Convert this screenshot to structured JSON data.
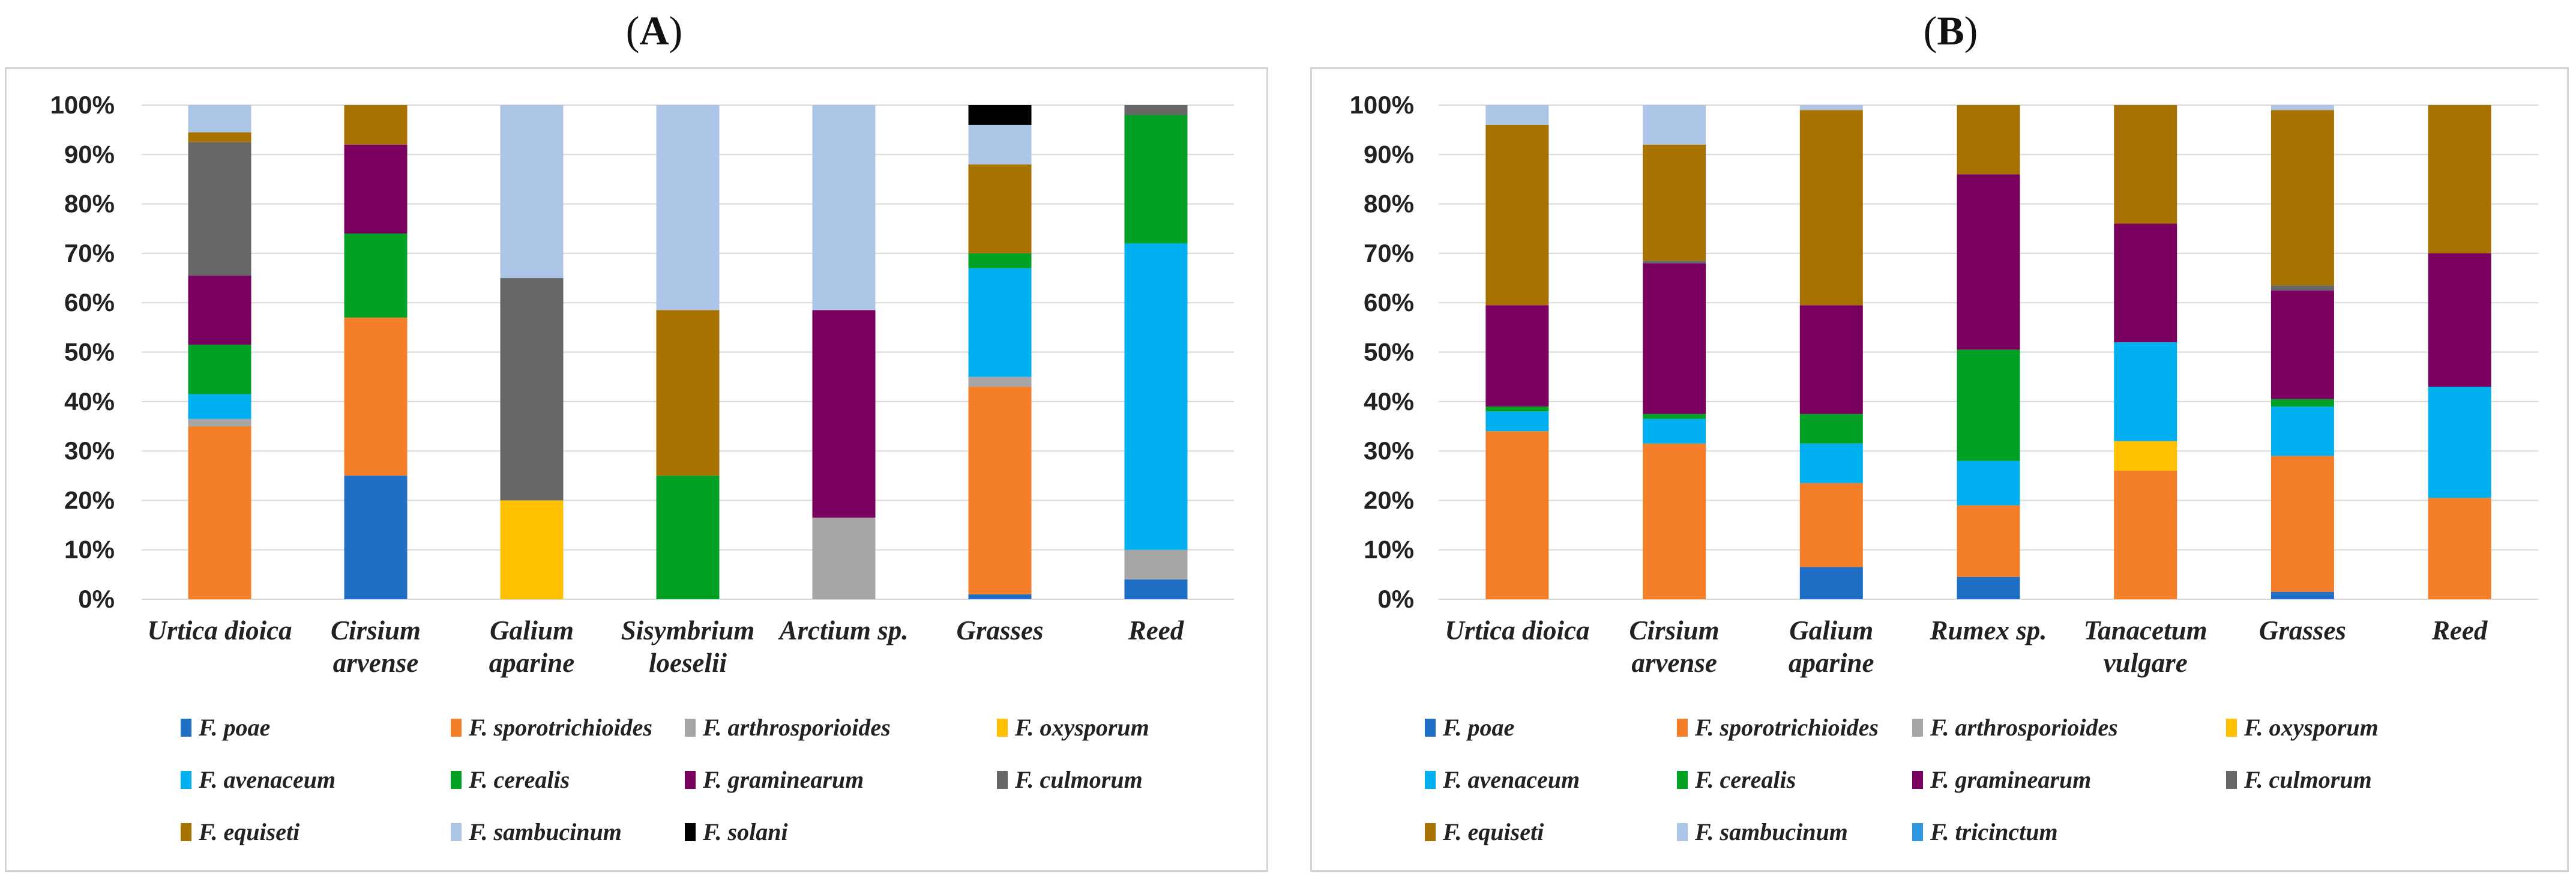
{
  "chart_data": [
    {
      "type": "bar",
      "stacked": true,
      "panel_label": "A",
      "title": "",
      "xlabel": "",
      "ylabel": "",
      "ylim": [
        0,
        100
      ],
      "yticks": [
        "0%",
        "10%",
        "20%",
        "30%",
        "40%",
        "50%",
        "60%",
        "70%",
        "80%",
        "90%",
        "100%"
      ],
      "grid": true,
      "legend_position": "bottom",
      "categories": [
        [
          "Urtica dioica"
        ],
        [
          "Cirsium",
          "arvense"
        ],
        [
          "Galium",
          "aparine"
        ],
        [
          "Sisymbrium",
          "loeselii"
        ],
        [
          "Arctium sp."
        ],
        [
          "Grasses"
        ],
        [
          "Reed"
        ]
      ],
      "series": [
        {
          "name": "F. poae",
          "color": "#1f6fc6",
          "values": [
            0,
            25,
            0,
            0,
            0,
            1,
            4
          ]
        },
        {
          "name": "F. sporotrichioides",
          "color": "#f57e28",
          "values": [
            35,
            32,
            0,
            0,
            0,
            42,
            0
          ]
        },
        {
          "name": "F. arthrosporioides",
          "color": "#a6a6a6",
          "values": [
            1.5,
            0,
            0,
            0,
            16.5,
            2,
            6
          ]
        },
        {
          "name": "F. oxysporum",
          "color": "#ffc000",
          "values": [
            0,
            0,
            20,
            0,
            0,
            0,
            0
          ]
        },
        {
          "name": "F. avenaceum",
          "color": "#00b0f0",
          "values": [
            5,
            0,
            0,
            0,
            0,
            22,
            62
          ]
        },
        {
          "name": "F. cerealis",
          "color": "#00a125",
          "values": [
            10,
            17,
            0,
            25,
            0,
            3,
            26
          ]
        },
        {
          "name": "F. graminearum",
          "color": "#7a0060",
          "values": [
            14,
            18,
            0,
            0,
            42,
            0,
            0
          ]
        },
        {
          "name": "F. culmorum",
          "color": "#676767",
          "values": [
            27,
            0,
            45,
            0,
            0,
            0,
            2
          ]
        },
        {
          "name": "F. equiseti",
          "color": "#a87200",
          "values": [
            2,
            8,
            0,
            33.5,
            0,
            18,
            0
          ]
        },
        {
          "name": "F. sambucinum",
          "color": "#adc6e8",
          "values": [
            5.5,
            0,
            35,
            41.5,
            41.5,
            8,
            0
          ]
        },
        {
          "name": "F. solani",
          "color": "#000000",
          "values": [
            0,
            0,
            0,
            0,
            0,
            4,
            0
          ]
        }
      ]
    },
    {
      "type": "bar",
      "stacked": true,
      "panel_label": "B",
      "title": "",
      "xlabel": "",
      "ylabel": "",
      "ylim": [
        0,
        100
      ],
      "yticks": [
        "0%",
        "10%",
        "20%",
        "30%",
        "40%",
        "50%",
        "60%",
        "70%",
        "80%",
        "90%",
        "100%"
      ],
      "grid": true,
      "legend_position": "bottom",
      "categories": [
        [
          "Urtica dioica"
        ],
        [
          "Cirsium",
          "arvense"
        ],
        [
          "Galium",
          "aparine"
        ],
        [
          "Rumex sp."
        ],
        [
          "Tanacetum",
          "vulgare"
        ],
        [
          "Grasses"
        ],
        [
          "Reed"
        ]
      ],
      "series": [
        {
          "name": "F. poae",
          "color": "#1f6fc6",
          "values": [
            0,
            0,
            6.5,
            4.5,
            0,
            1.5,
            0
          ]
        },
        {
          "name": "F. sporotrichioides",
          "color": "#f57e28",
          "values": [
            34,
            31.5,
            17,
            14.5,
            26,
            27.5,
            20.5
          ]
        },
        {
          "name": "F. arthrosporioides",
          "color": "#a6a6a6",
          "values": [
            0,
            0,
            0,
            0,
            0,
            0,
            0
          ]
        },
        {
          "name": "F. oxysporum",
          "color": "#ffc000",
          "values": [
            0,
            0,
            0,
            0,
            6,
            0,
            0
          ]
        },
        {
          "name": "F. avenaceum",
          "color": "#00b0f0",
          "values": [
            4,
            5,
            8,
            9,
            20,
            10,
            22.5
          ]
        },
        {
          "name": "F. cerealis",
          "color": "#00a125",
          "values": [
            1,
            1,
            6,
            22.5,
            0,
            1.5,
            0
          ]
        },
        {
          "name": "F. graminearum",
          "color": "#7a0060",
          "values": [
            20.5,
            30.5,
            22,
            35.5,
            24,
            22,
            27
          ]
        },
        {
          "name": "F. culmorum",
          "color": "#676767",
          "values": [
            0,
            0.5,
            0,
            0,
            0,
            1,
            0
          ]
        },
        {
          "name": "F. equiseti",
          "color": "#a87200",
          "values": [
            36.5,
            23.5,
            39.5,
            14,
            24,
            35.5,
            30
          ]
        },
        {
          "name": "F. sambucinum",
          "color": "#adc6e8",
          "values": [
            4,
            8,
            1,
            0,
            0,
            1,
            0
          ]
        },
        {
          "name": "F. tricinctum",
          "color": "#2e96dc",
          "values": [
            0,
            0,
            0,
            0,
            0,
            0,
            0
          ]
        }
      ]
    }
  ]
}
